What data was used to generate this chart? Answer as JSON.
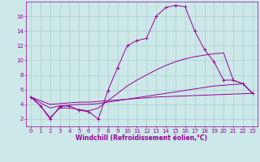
{
  "x": [
    0,
    1,
    2,
    3,
    4,
    5,
    6,
    7,
    8,
    9,
    10,
    11,
    12,
    13,
    14,
    15,
    16,
    17,
    18,
    19,
    20,
    21,
    22,
    23
  ],
  "curve_main": [
    5.0,
    3.8,
    2.0,
    3.7,
    3.8,
    3.2,
    3.0,
    2.0,
    5.9,
    9.0,
    12.0,
    12.7,
    13.0,
    16.0,
    17.2,
    17.5,
    17.3,
    14.0,
    11.5,
    9.8,
    7.3,
    7.3,
    6.8,
    5.5
  ],
  "line_upper": [
    5.0,
    3.8,
    2.2,
    3.5,
    3.5,
    3.3,
    3.1,
    3.5,
    4.5,
    5.5,
    6.5,
    7.3,
    8.0,
    8.7,
    9.3,
    9.8,
    10.2,
    10.5,
    10.7,
    10.9,
    11.0,
    7.3,
    6.8,
    5.5
  ],
  "line_lower1": [
    5.0,
    4.2,
    3.5,
    3.8,
    3.9,
    4.0,
    4.0,
    4.1,
    4.3,
    4.5,
    4.7,
    4.9,
    5.1,
    5.3,
    5.5,
    5.7,
    5.9,
    6.1,
    6.3,
    6.5,
    6.6,
    6.7,
    6.8,
    5.5
  ],
  "line_lower2": [
    5.0,
    4.5,
    4.0,
    4.1,
    4.2,
    4.3,
    4.3,
    4.4,
    4.5,
    4.6,
    4.7,
    4.8,
    4.9,
    5.0,
    5.05,
    5.1,
    5.15,
    5.2,
    5.25,
    5.3,
    5.35,
    5.4,
    5.45,
    5.5
  ],
  "color": "#990099",
  "bg_color": "#cce8e8",
  "grid_color": "#aacccc",
  "xlabel": "Windchill (Refroidissement éolien,°C)",
  "xlim": [
    -0.5,
    23.5
  ],
  "ylim": [
    1.0,
    18.0
  ],
  "yticks": [
    2,
    4,
    6,
    8,
    10,
    12,
    14,
    16
  ],
  "xticks": [
    0,
    1,
    2,
    3,
    4,
    5,
    6,
    7,
    8,
    9,
    10,
    11,
    12,
    13,
    14,
    15,
    16,
    17,
    18,
    19,
    20,
    21,
    22,
    23
  ],
  "xlabel_fontsize": 5.5,
  "tick_fontsize": 5.0,
  "linewidth": 0.7,
  "markersize": 2.5
}
